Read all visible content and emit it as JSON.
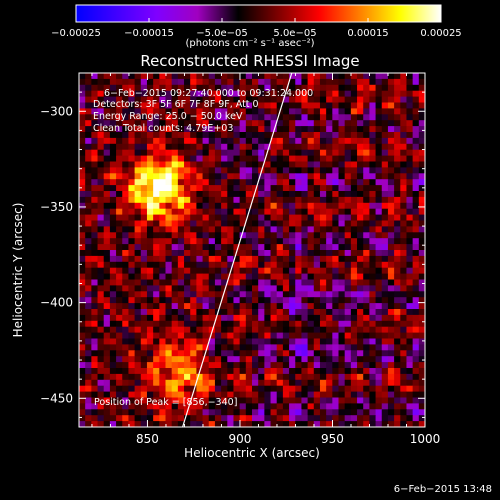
{
  "chart_data": {
    "type": "heatmap",
    "title": "Reconstructed RHESSI Image",
    "xlabel": "Heliocentric X (arcsec)",
    "ylabel": "Heliocentric Y (arcsec)",
    "xlim": [
      813,
      1000
    ],
    "ylim": [
      -465,
      -280
    ],
    "x_ticks": [
      850,
      900,
      950,
      1000
    ],
    "x_tick_labels": [
      "850",
      "900",
      "950",
      "1000"
    ],
    "y_ticks": [
      -300,
      -350,
      -400,
      -450
    ],
    "y_tick_labels": [
      "−300",
      "−350",
      "−400",
      "−450"
    ],
    "colorbar": {
      "range": [
        -0.00025,
        0.00025
      ],
      "tick_values": [
        -0.00025,
        -0.00015,
        -5e-05,
        5e-05,
        0.00015,
        0.00025
      ],
      "tick_labels": [
        "−0.00025",
        "−0.00015",
        "−5.0e−05",
        "5.0e−05",
        "0.00015",
        "0.00025"
      ],
      "units_label": "(photons cm⁻² s⁻¹ asec⁻²)",
      "colors": [
        "#0000ff",
        "#4000ff",
        "#8000ff",
        "#a000c0",
        "#000000",
        "#800000",
        "#ff0000",
        "#ff8000",
        "#ffff00",
        "#ffffff"
      ]
    },
    "annotations": [
      "6−Feb−2015 09:27:40.000 to 09:31:24.000",
      "Detectors: 3F 5F 6F 7F 8F 9F, Att 0",
      "Energy Range: 25.0 − 50.0 keV",
      "Clean    Total counts: 4.79E+03"
    ],
    "peak_label": "Position of Peak = [856,−340]",
    "peak_position": [
      856,
      -340
    ],
    "limb_line": {
      "x": [
        869,
        928
      ],
      "y": [
        -465,
        -280
      ]
    },
    "sources": [
      {
        "x": 856,
        "y": -340,
        "peak": 0.00025,
        "width_arcsec": 12
      },
      {
        "x": 866,
        "y": -437,
        "peak": 0.00014,
        "width_arcsec": 12
      }
    ],
    "timestamp": "6−Feb−2015 13:48"
  }
}
